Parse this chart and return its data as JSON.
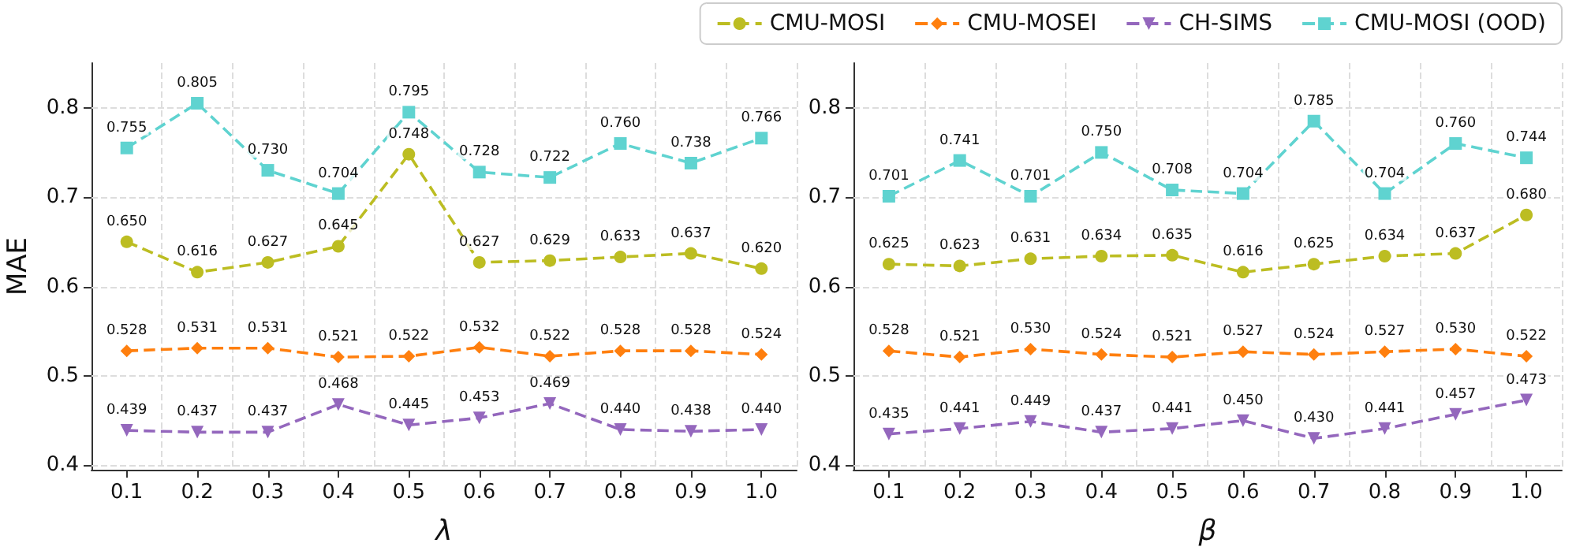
{
  "chart_data": [
    {
      "type": "line",
      "xlabel": "λ",
      "ylabel": "MAE",
      "categories": [
        "0.1",
        "0.2",
        "0.3",
        "0.4",
        "0.5",
        "0.6",
        "0.7",
        "0.8",
        "0.9",
        "1.0"
      ],
      "ylim": [
        0.395,
        0.85
      ],
      "yticks": [
        0.4,
        0.5,
        0.6,
        0.7,
        0.8
      ],
      "grid": true,
      "legend": "top right",
      "line_style": "dashed",
      "series": [
        {
          "name": "CMU-MOSI",
          "color": "#bcbd22",
          "marker": "circle",
          "values": [
            0.65,
            0.616,
            0.627,
            0.645,
            0.748,
            0.627,
            0.629,
            0.633,
            0.637,
            0.62
          ],
          "value_labels": [
            "0.650",
            "0.616",
            "0.627",
            "0.645",
            "0.748",
            "0.627",
            "0.629",
            "0.633",
            "0.637",
            "0.620"
          ]
        },
        {
          "name": "CMU-MOSEI",
          "color": "#ff7f0e",
          "marker": "diamond",
          "values": [
            0.528,
            0.531,
            0.531,
            0.521,
            0.522,
            0.532,
            0.522,
            0.528,
            0.528,
            0.524
          ],
          "value_labels": [
            "0.528",
            "0.531",
            "0.531",
            "0.521",
            "0.522",
            "0.532",
            "0.522",
            "0.528",
            "0.528",
            "0.524"
          ]
        },
        {
          "name": "CH-SIMS",
          "color": "#9467bd",
          "marker": "triangle",
          "values": [
            0.439,
            0.437,
            0.437,
            0.468,
            0.445,
            0.453,
            0.469,
            0.44,
            0.438,
            0.44
          ],
          "value_labels": [
            "0.439",
            "0.437",
            "0.437",
            "0.468",
            "0.445",
            "0.453",
            "0.469",
            "0.440",
            "0.438",
            "0.440"
          ]
        },
        {
          "name": "CMU-MOSI (OOD)",
          "color": "#5fd3d0",
          "marker": "square",
          "values": [
            0.755,
            0.805,
            0.73,
            0.704,
            0.795,
            0.728,
            0.722,
            0.76,
            0.738,
            0.766
          ],
          "value_labels": [
            "0.755",
            "0.805",
            "0.730",
            "0.704",
            "0.795",
            "0.728",
            "0.722",
            "0.760",
            "0.738",
            "0.766"
          ]
        }
      ]
    },
    {
      "type": "line",
      "xlabel": "β",
      "categories": [
        "0.1",
        "0.2",
        "0.3",
        "0.4",
        "0.5",
        "0.6",
        "0.7",
        "0.8",
        "0.9",
        "1.0"
      ],
      "ylim": [
        0.395,
        0.85
      ],
      "yticks": [
        0.4,
        0.5,
        0.6,
        0.7,
        0.8
      ],
      "grid": true,
      "line_style": "dashed",
      "series": [
        {
          "color": "#bcbd22",
          "marker": "circle",
          "values": [
            0.625,
            0.623,
            0.631,
            0.634,
            0.635,
            0.616,
            0.625,
            0.634,
            0.637,
            0.68
          ],
          "value_labels": [
            "0.625",
            "0.623",
            "0.631",
            "0.634",
            "0.635",
            "0.616",
            "0.625",
            "0.634",
            "0.637",
            "0.680"
          ]
        },
        {
          "color": "#ff7f0e",
          "marker": "diamond",
          "values": [
            0.528,
            0.521,
            0.53,
            0.524,
            0.521,
            0.527,
            0.524,
            0.527,
            0.53,
            0.522
          ],
          "value_labels": [
            "0.528",
            "0.521",
            "0.530",
            "0.524",
            "0.521",
            "0.527",
            "0.524",
            "0.527",
            "0.530",
            "0.522"
          ]
        },
        {
          "color": "#9467bd",
          "marker": "triangle",
          "values": [
            0.435,
            0.441,
            0.449,
            0.437,
            0.441,
            0.45,
            0.43,
            0.441,
            0.457,
            0.473
          ],
          "value_labels": [
            "0.435",
            "0.441",
            "0.449",
            "0.437",
            "0.441",
            "0.450",
            "0.430",
            "0.441",
            "0.457",
            "0.473"
          ]
        },
        {
          "color": "#5fd3d0",
          "marker": "square",
          "values": [
            0.701,
            0.741,
            0.701,
            0.75,
            0.708,
            0.704,
            0.785,
            0.704,
            0.76,
            0.744
          ],
          "value_labels": [
            "0.701",
            "0.741",
            "0.701",
            "0.750",
            "0.708",
            "0.704",
            "0.785",
            "0.704",
            "0.760",
            "0.744"
          ]
        }
      ]
    }
  ]
}
